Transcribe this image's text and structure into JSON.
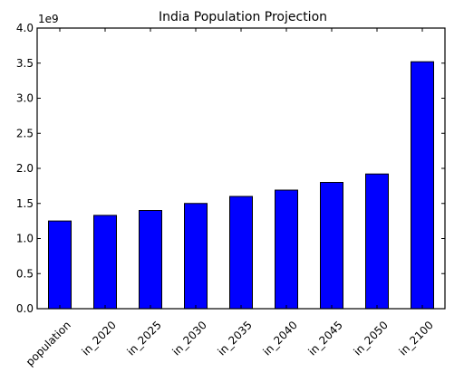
{
  "chart_data": {
    "type": "bar",
    "title": "India Population Projection",
    "xlabel": "",
    "ylabel": "",
    "y_scale_label": "1e9",
    "categories": [
      "population",
      "in_2020",
      "in_2025",
      "in_2030",
      "in_2035",
      "in_2040",
      "in_2045",
      "in_2050",
      "in_2100"
    ],
    "series": [
      {
        "values": [
          1.25,
          1.33,
          1.4,
          1.5,
          1.6,
          1.69,
          1.8,
          1.92,
          3.52
        ]
      }
    ],
    "ylim": [
      0,
      4.0
    ],
    "yticks": [
      "0.0",
      "0.5",
      "1.0",
      "1.5",
      "2.0",
      "2.5",
      "3.0",
      "3.5",
      "4.0"
    ],
    "grid": false,
    "legend": "none",
    "bar_color": "#0000ff",
    "edge_color": "#000000"
  }
}
